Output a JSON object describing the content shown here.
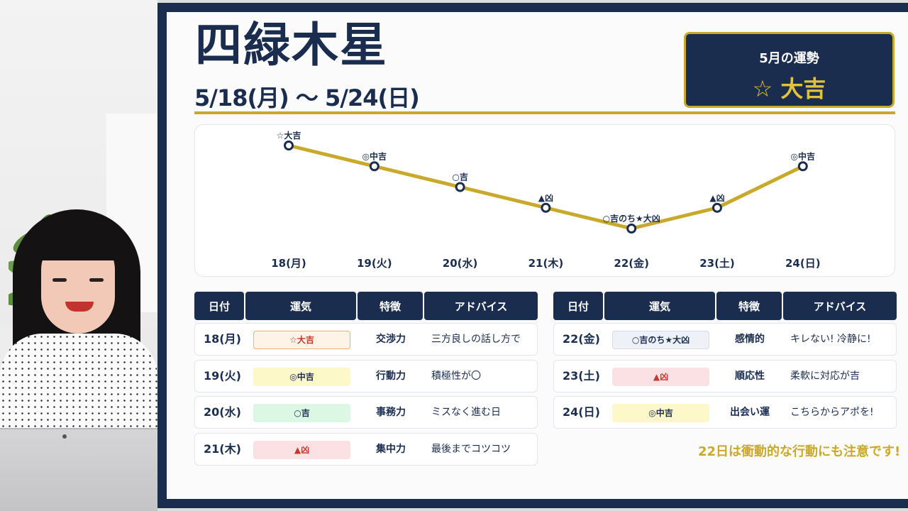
{
  "title": "四緑木星",
  "date_range": "5/18(月) ～ 5/24(日)",
  "monthly": {
    "label": "5月の運勢",
    "value": "☆ 大吉"
  },
  "colors": {
    "navy": "#1b2d4f",
    "gold": "#c9a92b",
    "line": "#c9a92b"
  },
  "chart_data": {
    "type": "line",
    "categories": [
      "18(月)",
      "19(火)",
      "20(水)",
      "21(木)",
      "22(金)",
      "23(土)",
      "24(日)"
    ],
    "series": [
      {
        "values": [
          5,
          4,
          3,
          2,
          1,
          2,
          4
        ],
        "labels": [
          "☆大吉",
          "◎中吉",
          "○吉",
          "▲凶",
          "○吉のち★大凶",
          "▲凶",
          "◎中吉"
        ]
      }
    ],
    "ylim": [
      1,
      5
    ],
    "grid": false,
    "legend": "none"
  },
  "table_headers": [
    "日付",
    "運気",
    "特徴",
    "アドバイス"
  ],
  "left_rows": [
    {
      "date": "18(月)",
      "fortune": "☆大吉",
      "feature": "交渉力",
      "advice": "三方良しの話し方で",
      "pill": "daikichi"
    },
    {
      "date": "19(火)",
      "fortune": "◎中吉",
      "feature": "行動力",
      "advice": "積極性が〇",
      "pill": "chukichi"
    },
    {
      "date": "20(水)",
      "fortune": "○吉",
      "feature": "事務力",
      "advice": "ミスなく進む日",
      "pill": "kichi"
    },
    {
      "date": "21(木)",
      "fortune": "▲凶",
      "feature": "集中力",
      "advice": "最後までコツコツ",
      "pill": "kyo"
    }
  ],
  "right_rows": [
    {
      "date": "22(金)",
      "fortune": "○吉のち★大凶",
      "feature": "感情的",
      "advice": "キレない! 冷静に!",
      "pill": "mixed"
    },
    {
      "date": "23(土)",
      "fortune": "▲凶",
      "feature": "順応性",
      "advice": "柔軟に対応が吉",
      "pill": "kyo"
    },
    {
      "date": "24(日)",
      "fortune": "◎中吉",
      "feature": "出会い運",
      "advice": "こちらからアポを!",
      "pill": "chukichi"
    }
  ],
  "pill_styles": {
    "daikichi": {
      "bg": "#fdf3e6",
      "border": "#e8b27a",
      "color": "#c0392b"
    },
    "chukichi": {
      "bg": "#fdf8c8",
      "border": "#fdf8c8",
      "color": "#1b2d4f"
    },
    "kichi": {
      "bg": "#dcf7e4",
      "border": "#dcf7e4",
      "color": "#1b2d4f"
    },
    "kyo": {
      "bg": "#fbe0e4",
      "border": "#fbe0e4",
      "color": "#c0392b"
    },
    "mixed": {
      "bg": "#eef2f7",
      "border": "#d7dde6",
      "color": "#1b2d4f"
    }
  },
  "note": "22日は衝動的な行動にも注意です!"
}
